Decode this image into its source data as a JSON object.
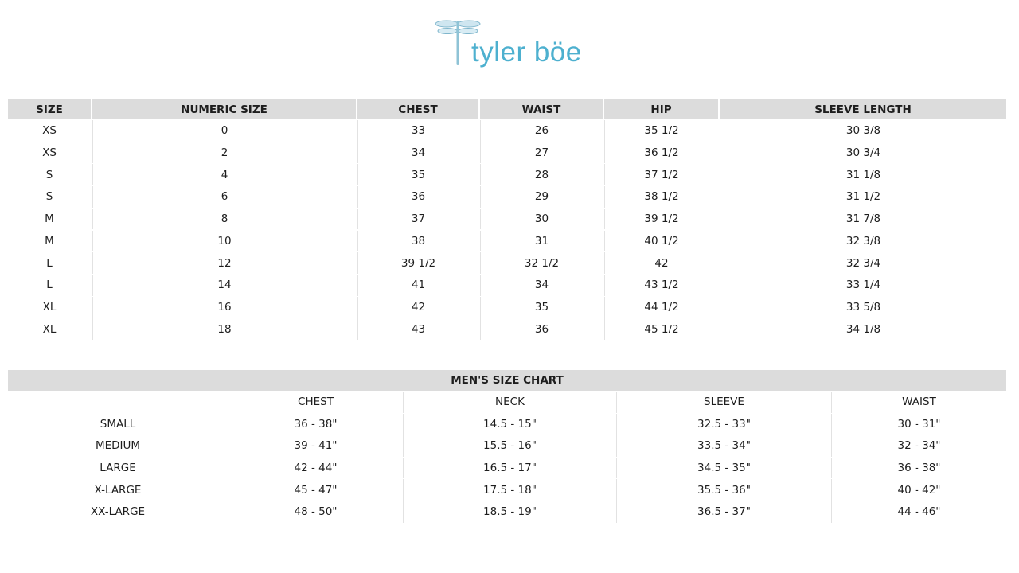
{
  "brand": {
    "name": "tyler böe",
    "logo_icon": "dragonfly-icon",
    "color": "#4db0cf"
  },
  "womens": {
    "headers": [
      "SIZE",
      "NUMERIC SIZE",
      "CHEST",
      "WAIST",
      "HIP",
      "SLEEVE LENGTH"
    ],
    "rows": [
      [
        "XS",
        "0",
        "33",
        "26",
        "35 1/2",
        "30 3/8"
      ],
      [
        "XS",
        "2",
        "34",
        "27",
        "36 1/2",
        "30 3/4"
      ],
      [
        "S",
        "4",
        "35",
        "28",
        "37 1/2",
        "31 1/8"
      ],
      [
        "S",
        "6",
        "36",
        "29",
        "38 1/2",
        "31 1/2"
      ],
      [
        "M",
        "8",
        "37",
        "30",
        "39 1/2",
        "31 7/8"
      ],
      [
        "M",
        "10",
        "38",
        "31",
        "40 1/2",
        "32 3/8"
      ],
      [
        "L",
        "12",
        "39 1/2",
        "32 1/2",
        "42",
        "32 3/4"
      ],
      [
        "L",
        "14",
        "41",
        "34",
        "43 1/2",
        "33 1/4"
      ],
      [
        "XL",
        "16",
        "42",
        "35",
        "44 1/2",
        "33 5/8"
      ],
      [
        "XL",
        "18",
        "43",
        "36",
        "45 1/2",
        "34 1/8"
      ]
    ]
  },
  "mens": {
    "title": "MEN'S SIZE CHART",
    "headers": [
      "",
      "CHEST",
      "NECK",
      "SLEEVE",
      "WAIST"
    ],
    "rows": [
      [
        "SMALL",
        "36 - 38\"",
        "14.5 - 15\"",
        "32.5 - 33\"",
        "30 - 31\""
      ],
      [
        "MEDIUM",
        "39 - 41\"",
        "15.5 - 16\"",
        "33.5 - 34\"",
        "32 - 34\""
      ],
      [
        "LARGE",
        "42 - 44\"",
        "16.5 - 17\"",
        "34.5 - 35\"",
        "36 - 38\""
      ],
      [
        "X-LARGE",
        "45 - 47\"",
        "17.5 - 18\"",
        "35.5 - 36\"",
        "40 - 42\""
      ],
      [
        "XX-LARGE",
        "48 - 50\"",
        "18.5 - 19\"",
        "36.5 - 37\"",
        "44 - 46\""
      ]
    ]
  }
}
